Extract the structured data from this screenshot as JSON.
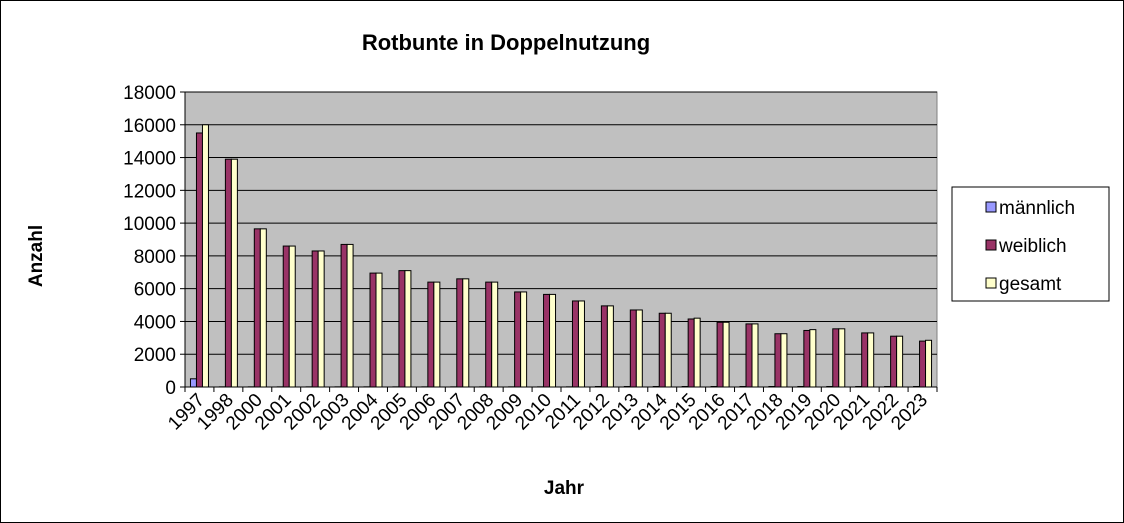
{
  "chart_data": {
    "type": "bar",
    "title": "Rotbunte  in Doppelnutzung",
    "xlabel": "Jahr",
    "ylabel": "Anzahl",
    "ylim": [
      0,
      18000
    ],
    "yticks": [
      0,
      2000,
      4000,
      6000,
      8000,
      10000,
      12000,
      14000,
      16000,
      18000
    ],
    "grid": true,
    "legend_position": "right",
    "categories": [
      "1997",
      "1998",
      "2000",
      "2001",
      "2002",
      "2003",
      "2004",
      "2005",
      "2006",
      "2007",
      "2008",
      "2009",
      "2010",
      "2011",
      "2012",
      "2013",
      "2014",
      "2015",
      "2016",
      "2017",
      "2018",
      "2019",
      "2020",
      "2021",
      "2022",
      "2023"
    ],
    "series": [
      {
        "name": "männlich",
        "color": "#9999ff",
        "values": [
          500,
          10,
          10,
          10,
          10,
          10,
          10,
          10,
          10,
          10,
          10,
          10,
          10,
          10,
          30,
          30,
          30,
          30,
          30,
          30,
          30,
          30,
          30,
          30,
          30,
          30
        ]
      },
      {
        "name": "weiblich",
        "color": "#993366",
        "values": [
          15500,
          13900,
          9650,
          8600,
          8300,
          8700,
          6950,
          7100,
          6400,
          6600,
          6400,
          5800,
          5650,
          5250,
          4950,
          4700,
          4500,
          4150,
          3950,
          3850,
          3250,
          3450,
          3550,
          3300,
          3100,
          2800
        ]
      },
      {
        "name": "gesamt",
        "color": "#ffffcc",
        "values": [
          16000,
          13900,
          9650,
          8600,
          8300,
          8700,
          6950,
          7100,
          6400,
          6600,
          6400,
          5800,
          5650,
          5250,
          4950,
          4700,
          4500,
          4200,
          3950,
          3850,
          3250,
          3500,
          3550,
          3300,
          3100,
          2850
        ]
      }
    ]
  }
}
